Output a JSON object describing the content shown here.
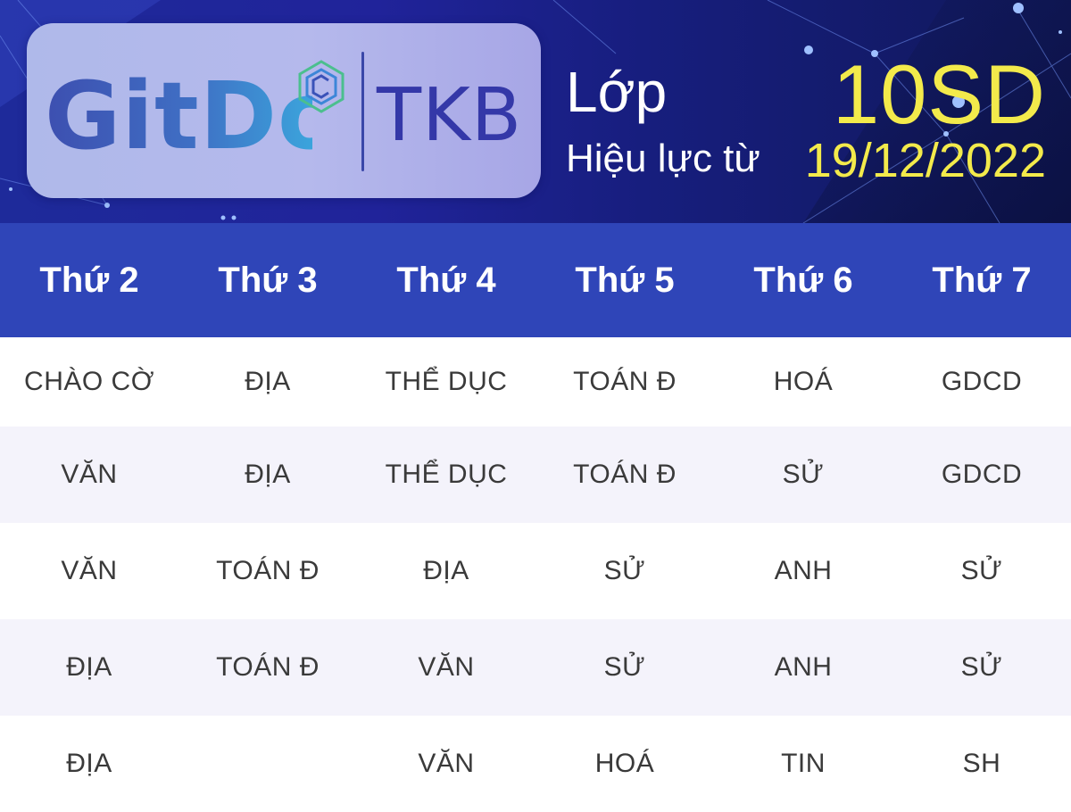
{
  "header": {
    "logo_text": "GitDo",
    "logo_suffix": "TKB",
    "class_label": "Lớp",
    "effective_label": "Hiệu lực từ",
    "class_name": "10SD",
    "effective_date": "19/12/2022"
  },
  "colors": {
    "banner": "#1e2a9a",
    "header_row": "#2f45b8",
    "accent_yellow": "#f3ea4b",
    "logo_tkb": "#3438a8",
    "stripe": "#f4f3fb",
    "text": "#3a3a3a"
  },
  "icons": [
    "gitdo-logo-mark-icon"
  ],
  "schedule": {
    "days": [
      "Thứ 2",
      "Thứ 3",
      "Thứ 4",
      "Thứ 5",
      "Thứ 6",
      "Thứ 7"
    ],
    "rows": [
      [
        "CHÀO CỜ",
        "ĐỊA",
        "THỂ DỤC",
        "TOÁN Đ",
        "HOÁ",
        "GDCD"
      ],
      [
        "VĂN",
        "ĐỊA",
        "THỂ DỤC",
        "TOÁN Đ",
        "SỬ",
        "GDCD"
      ],
      [
        "VĂN",
        "TOÁN Đ",
        "ĐỊA",
        "SỬ",
        "ANH",
        "SỬ"
      ],
      [
        "ĐỊA",
        "TOÁN Đ",
        "VĂN",
        "SỬ",
        "ANH",
        "SỬ"
      ],
      [
        "ĐỊA",
        "",
        "VĂN",
        "HOÁ",
        "TIN",
        "SH"
      ]
    ]
  }
}
